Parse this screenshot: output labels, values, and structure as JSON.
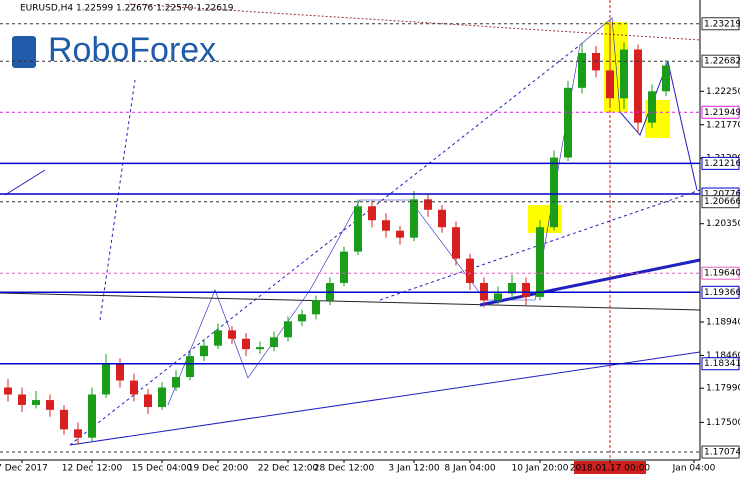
{
  "chart_data": {
    "type": "candlestick",
    "title": "EURUSD,H4  1.22599 1.22676 1.22570 1.22619",
    "watermark": "RoboForex",
    "categories": [
      null,
      "7 Dec 2017",
      null,
      null,
      null,
      null,
      "12 Dec 12:00",
      null,
      null,
      null,
      null,
      "15 Dec 04:00",
      null,
      null,
      null,
      "19 Dec 20:00",
      null,
      null,
      null,
      null,
      "22 Dec 12:00",
      null,
      null,
      null,
      "28 Dec 12:00",
      null,
      null,
      null,
      null,
      "3 Jan 12:00",
      null,
      null,
      null,
      "8 Jan 04:00",
      null,
      null,
      null,
      null,
      "10 Jan 20:00",
      null,
      null,
      null,
      null,
      "2018.01.17 00:00",
      null,
      null,
      null,
      null,
      null,
      "Jan 04:00"
    ],
    "open": [
      1.18,
      1.179,
      1.1775,
      1.1782,
      1.1768,
      1.174,
      1.1728,
      1.179,
      1.1835,
      1.181,
      1.179,
      1.1772,
      1.18,
      1.1815,
      1.1845,
      1.186,
      1.1882,
      1.187,
      1.1855,
      1.1858,
      1.1872,
      1.1895,
      1.1905,
      1.1925,
      1.195,
      1.1995,
      1.206,
      1.204,
      1.2025,
      1.2015,
      1.207,
      1.2055,
      1.203,
      1.1985,
      1.195,
      1.1925,
      1.1935,
      1.195,
      1.193,
      1.203,
      1.213,
      1.223,
      1.228,
      1.2255,
      1.2215,
      1.2285,
      1.218,
      1.2225,
      null,
      null
    ],
    "high": [
      1.1812,
      1.18,
      1.1795,
      1.179,
      1.1775,
      1.175,
      1.18,
      1.1848,
      1.1842,
      1.182,
      1.1798,
      1.1808,
      1.1825,
      1.1852,
      1.187,
      1.1892,
      1.1888,
      1.1878,
      1.1866,
      1.188,
      1.1902,
      1.1912,
      1.1932,
      1.1958,
      1.2002,
      1.207,
      1.2068,
      1.205,
      1.2032,
      1.2082,
      1.2078,
      1.2062,
      1.2038,
      1.1992,
      1.1958,
      1.1945,
      1.1962,
      1.1958,
      1.204,
      1.214,
      1.224,
      1.2295,
      1.229,
      1.2322,
      1.2295,
      1.2292,
      1.2235,
      1.227,
      null,
      null
    ],
    "low": [
      1.178,
      1.1765,
      1.177,
      1.1758,
      1.1732,
      1.1718,
      1.1722,
      1.1785,
      1.18,
      1.178,
      1.1762,
      1.1768,
      1.1795,
      1.181,
      1.1838,
      1.1855,
      1.1862,
      1.1845,
      1.1848,
      1.1852,
      1.1866,
      1.1888,
      1.1898,
      1.1918,
      1.1945,
      1.199,
      1.203,
      1.2015,
      1.2005,
      1.201,
      1.2045,
      1.2022,
      1.1975,
      1.194,
      1.1915,
      1.1918,
      1.1928,
      1.1918,
      1.1925,
      1.2025,
      1.2125,
      1.2222,
      1.2245,
      1.2205,
      1.22,
      1.2165,
      1.2172,
      1.2218,
      null,
      null
    ],
    "close": [
      1.179,
      1.1775,
      1.1782,
      1.1768,
      1.174,
      1.1728,
      1.179,
      1.1835,
      1.181,
      1.179,
      1.1772,
      1.18,
      1.1815,
      1.1845,
      1.186,
      1.1882,
      1.187,
      1.1855,
      1.1858,
      1.1872,
      1.1895,
      1.1905,
      1.1925,
      1.195,
      1.1995,
      1.206,
      1.204,
      1.2025,
      1.2015,
      1.207,
      1.2055,
      1.203,
      1.1985,
      1.195,
      1.1925,
      1.1935,
      1.195,
      1.193,
      1.203,
      1.213,
      1.223,
      1.228,
      1.2255,
      1.2215,
      1.2285,
      1.218,
      1.2225,
      1.2262,
      null,
      null
    ],
    "up_color": "#1a9e1a",
    "down_color": "#d92020",
    "ylim": [
      1.1696,
      1.2356
    ],
    "yticks": [
      {
        "value": 1.2225,
        "label": "1.22250"
      },
      {
        "value": 1.2177,
        "label": "1.21770"
      },
      {
        "value": 1.2129,
        "label": "1.21290"
      },
      {
        "value": 1.2035,
        "label": "1.20350"
      },
      {
        "value": 1.1894,
        "label": "1.18940"
      },
      {
        "value": 1.1846,
        "label": "1.18460"
      },
      {
        "value": 1.1799,
        "label": "1.17990"
      },
      {
        "value": 1.175,
        "label": "1.17500"
      }
    ],
    "levels": [
      {
        "value": 1.23219,
        "label": "1.23219",
        "color": "#333333"
      },
      {
        "value": 1.22682,
        "label": "1.22682",
        "color": "#333333"
      },
      {
        "value": 1.21949,
        "label": "1.21949",
        "color": "#e020e0"
      },
      {
        "value": 1.21216,
        "label": "1.21216",
        "color": "#0000cc"
      },
      {
        "value": 1.20776,
        "label": "1.20776",
        "color": "#0000cc"
      },
      {
        "value": 1.20666,
        "label": "1.20666",
        "color": "#333333"
      },
      {
        "value": 1.1964,
        "label": "1.19640",
        "color": "#e060c0"
      },
      {
        "value": 1.19366,
        "label": "1.19366",
        "color": "#0000cc"
      },
      {
        "value": 1.18341,
        "label": "1.18341",
        "color": "#0000cc"
      },
      {
        "value": 1.17074,
        "label": "1.17074",
        "color": "#333333"
      }
    ],
    "marker_category": 43
  }
}
